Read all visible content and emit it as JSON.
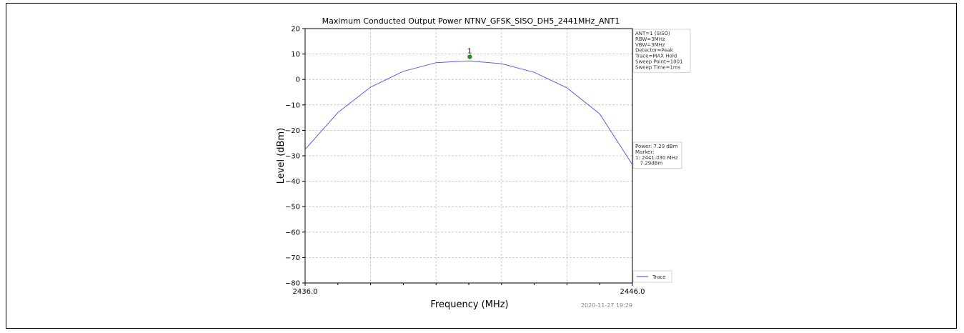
{
  "chart_data": {
    "type": "line",
    "title": "Maximum Conducted Output Power NTNV_GFSK_SISO_DH5_2441MHz_ANT1",
    "xlabel": "Frequency (MHz)",
    "ylabel": "Level (dBm)",
    "xlim": [
      2436.0,
      2446.0
    ],
    "ylim": [
      -80,
      20
    ],
    "x_tick_labels": [
      "2436.0",
      "2446.0"
    ],
    "y_ticks": [
      20,
      10,
      0,
      -10,
      -20,
      -30,
      -40,
      -50,
      -60,
      -70,
      -80
    ],
    "y_tick_labels": [
      "20",
      "10",
      "0",
      "−10",
      "−20",
      "−30",
      "−40",
      "−50",
      "−60",
      "−70",
      "−80"
    ],
    "grid": true,
    "series": [
      {
        "name": "Trace",
        "color": "#5b5bef",
        "x": [
          2436.0,
          2437.0,
          2438.0,
          2439.0,
          2440.0,
          2441.0,
          2442.0,
          2443.0,
          2444.0,
          2445.0,
          2446.0
        ],
        "y": [
          -27.5,
          -13.0,
          -3.0,
          3.2,
          6.6,
          7.29,
          6.2,
          2.8,
          -3.3,
          -13.5,
          -33.5
        ]
      }
    ],
    "marker": {
      "label": "1",
      "x": 2441.03,
      "y": 8.9,
      "color": "#2e8b2e"
    },
    "settings_box": [
      "ANT=1 (SISO)",
      "RBW=3MHz",
      "VBW=3MHz",
      "Detector=Peak",
      "Trace=MAX Hold",
      "Sweep Point=1001",
      "Sweep Time=1ms"
    ],
    "result_box": [
      "Power: 7.29 dBm",
      "Marker:",
      "1: 2441.030 MHz",
      "   7.29dBm"
    ],
    "legend": {
      "position": "bottom-right",
      "label": "Trace"
    },
    "timestamp": "2020-11-27 19:29"
  }
}
